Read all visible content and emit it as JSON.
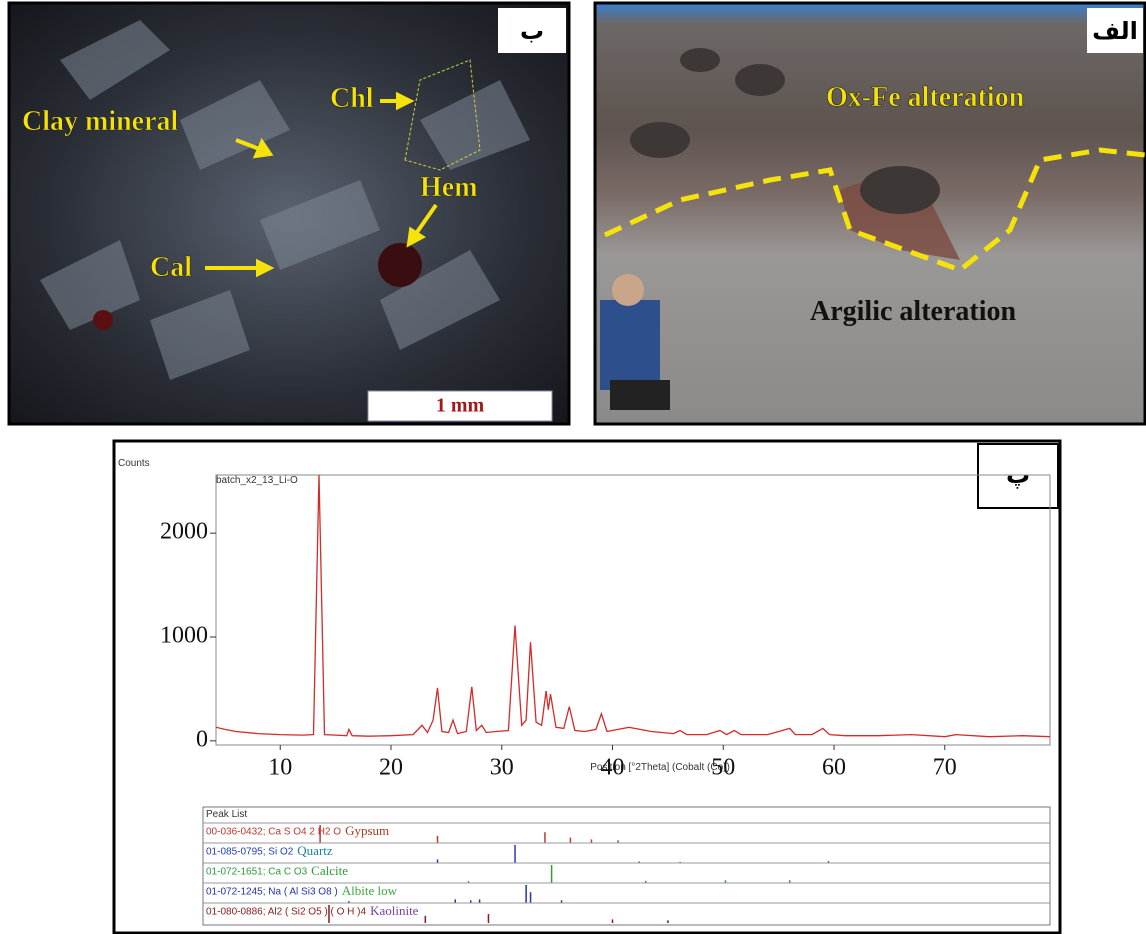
{
  "panels": {
    "micrograph": {
      "corner_label": "ب",
      "labels": [
        "Clay mineral",
        "Chl",
        "Hem",
        "Cal"
      ],
      "scale_bar": "1 mm"
    },
    "outcrop": {
      "corner_label": "الف",
      "labels": [
        "Ox-Fe alteration",
        "Argilic alteration"
      ]
    }
  },
  "chart_data": {
    "type": "line",
    "corner_label": "پ",
    "y_label": "Counts",
    "sample_name": "batch_x2_13_Li-O",
    "x_label": "Position [°2Theta] (Cobalt (Co))",
    "xlim": [
      4.2,
      79.5
    ],
    "ylim": [
      -40,
      2560
    ],
    "xticks": [
      10,
      20,
      30,
      40,
      50,
      60,
      70
    ],
    "yticks": [
      0,
      1000,
      2000
    ],
    "series": [
      {
        "name": "batch_x2_13_Li-O",
        "color": "#d42a2a",
        "x": [
          4.2,
          5,
          6,
          8,
          10,
          12,
          13,
          13.5,
          14,
          15,
          16,
          16.2,
          16.5,
          18,
          20,
          22,
          22.8,
          23.3,
          23.8,
          24.2,
          24.6,
          25.2,
          25.6,
          26,
          26.8,
          27.3,
          27.7,
          28.2,
          28.6,
          29.5,
          30.6,
          31.2,
          31.8,
          32.2,
          32.6,
          33.1,
          33.6,
          34.0,
          34.2,
          34.4,
          34.9,
          35.6,
          36.1,
          36.6,
          37.5,
          38.5,
          39.0,
          39.5,
          40.5,
          41.5,
          42.5,
          43.5,
          45.5,
          46.1,
          46.7,
          48.5,
          49.7,
          50.3,
          51.0,
          51.6,
          54,
          56.0,
          56.5,
          58,
          59.0,
          59.6,
          61,
          64,
          67,
          70,
          71,
          74,
          77,
          79.5
        ],
        "values": [
          130,
          110,
          90,
          70,
          60,
          55,
          60,
          2560,
          60,
          55,
          50,
          110,
          50,
          45,
          50,
          60,
          150,
          80,
          200,
          510,
          90,
          80,
          200,
          70,
          90,
          520,
          100,
          150,
          80,
          90,
          100,
          1110,
          150,
          200,
          950,
          180,
          150,
          480,
          300,
          450,
          130,
          120,
          330,
          100,
          90,
          110,
          260,
          90,
          110,
          130,
          110,
          90,
          70,
          100,
          60,
          60,
          100,
          60,
          100,
          60,
          60,
          120,
          60,
          60,
          120,
          60,
          50,
          50,
          60,
          40,
          60,
          40,
          50,
          40
        ]
      }
    ],
    "peak_list": {
      "title": "Peak List",
      "phases": [
        {
          "code": "00-036-0432; Ca S O4 2 H2 O",
          "name": "Gypsum",
          "color": "#c0392b",
          "name_color": "#b03a20",
          "x": [
            13.6,
            24.2,
            33.9,
            36.2,
            38.1,
            40.5
          ],
          "values": [
            100,
            40,
            60,
            30,
            20,
            15
          ]
        },
        {
          "code": "01-085-0795; Si O2",
          "name": "Quartz",
          "color": "#1f3fbf",
          "name_color": "#1a7fa0",
          "x": [
            24.2,
            31.2,
            42.4,
            46.1,
            59.5
          ],
          "values": [
            20,
            100,
            8,
            6,
            10
          ]
        },
        {
          "code": "01-072-1651; Ca C O3",
          "name": "Calcite",
          "color": "#2e9c3a",
          "name_color": "#2e9c3a",
          "x": [
            27.0,
            34.5,
            43.0,
            50.2,
            56.0
          ],
          "values": [
            10,
            100,
            12,
            15,
            15
          ]
        },
        {
          "code": "01-072-1245; Na ( Al Si3 O8 )",
          "name": "Albite low",
          "color": "#2233aa",
          "name_color": "#3da83d",
          "x": [
            16.2,
            25.8,
            27.2,
            28.0,
            32.2,
            32.6,
            35.4
          ],
          "values": [
            10,
            20,
            15,
            20,
            100,
            60,
            15
          ]
        },
        {
          "code": "01-080-0886; Al2 ( Si2 O5 ) ( O H )4",
          "name": "Kaolinite",
          "color": "#8b1a1a",
          "name_color": "#7a3db0",
          "x": [
            14.4,
            23.1,
            28.8,
            40.0,
            45.0
          ],
          "values": [
            100,
            40,
            50,
            20,
            15
          ]
        }
      ]
    }
  }
}
